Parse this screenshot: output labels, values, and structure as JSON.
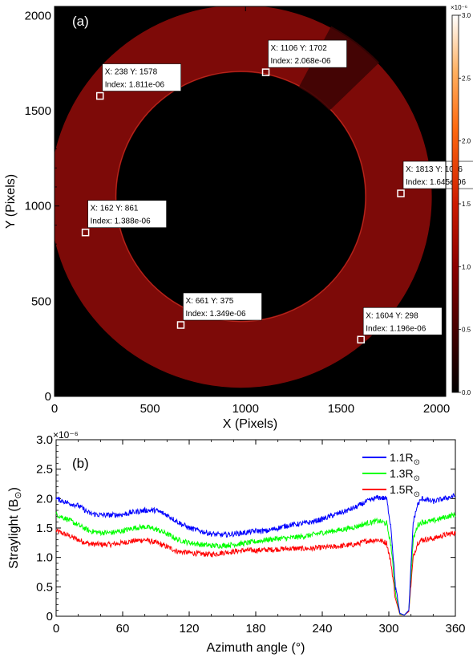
{
  "chart_data": [
    {
      "type": "heatmap",
      "panel_label": "(a)",
      "xlabel": "X (Pixels)",
      "ylabel": "Y (Pixels)",
      "xlim": [
        0,
        2048
      ],
      "ylim": [
        0,
        2048
      ],
      "xticks": [
        0,
        500,
        1000,
        1500,
        2000
      ],
      "yticks": [
        0,
        500,
        1000,
        1500,
        2000
      ],
      "colorbar": {
        "exponent_label": "×10⁻⁶",
        "range": [
          0.0,
          3.0
        ],
        "ticks": [
          "0.0",
          "0.5",
          "1.0",
          "1.5",
          "2.0",
          "2.5",
          "3.0"
        ]
      },
      "ring": {
        "center": [
          975,
          1050
        ],
        "inner_radius": 650,
        "outer_radius": 1000
      },
      "annotations": [
        {
          "x": 238,
          "y": 1578,
          "label_xy": "X: 238   Y: 1578",
          "label_index": "Index: 1.811e-06"
        },
        {
          "x": 1106,
          "y": 1702,
          "label_xy": "X: 1106   Y: 1702",
          "label_index": "Index: 2.068e-06"
        },
        {
          "x": 1813,
          "y": 1066,
          "label_xy": "X: 1813   Y: 1066",
          "label_index": "Index: 1.645e-06"
        },
        {
          "x": 162,
          "y": 861,
          "label_xy": "X: 162   Y: 861",
          "label_index": "Index: 1.388e-06"
        },
        {
          "x": 661,
          "y": 375,
          "label_xy": "X: 661   Y: 375",
          "label_index": "Index: 1.349e-06"
        },
        {
          "x": 1604,
          "y": 298,
          "label_xy": "X: 1604   Y: 298",
          "label_index": "Index: 1.196e-06"
        }
      ]
    },
    {
      "type": "line",
      "panel_label": "(b)",
      "xlabel": "Azimuth angle (°)",
      "ylabel": "Straylight (B",
      "ylabel_sub": "⊙",
      "ylabel_end": ")",
      "y_exponent_label": "×10⁻⁶",
      "xlim": [
        0,
        360
      ],
      "ylim": [
        0,
        3.0
      ],
      "xticks": [
        0,
        60,
        120,
        180,
        240,
        300,
        360
      ],
      "yticks": [
        "0",
        "0.5",
        "1.0",
        "1.5",
        "2.0",
        "2.5",
        "3.0"
      ],
      "legend_position": "top-right",
      "x": [
        0,
        10,
        20,
        30,
        40,
        50,
        60,
        70,
        80,
        90,
        100,
        110,
        120,
        130,
        140,
        150,
        160,
        170,
        180,
        190,
        200,
        210,
        220,
        230,
        240,
        250,
        260,
        270,
        280,
        290,
        298,
        302,
        306,
        310,
        314,
        318,
        322,
        326,
        330,
        340,
        350,
        360
      ],
      "series": [
        {
          "name": "1.1R",
          "name_sub": "⊙",
          "color": "#0000ff",
          "values": [
            2.0,
            1.93,
            1.88,
            1.75,
            1.72,
            1.72,
            1.73,
            1.77,
            1.8,
            1.8,
            1.72,
            1.6,
            1.5,
            1.45,
            1.4,
            1.38,
            1.4,
            1.42,
            1.45,
            1.45,
            1.5,
            1.55,
            1.57,
            1.6,
            1.65,
            1.72,
            1.78,
            1.85,
            1.95,
            2.02,
            2.0,
            1.5,
            0.5,
            0.05,
            0.02,
            0.1,
            1.6,
            1.9,
            2.0,
            1.95,
            2.0,
            2.05
          ]
        },
        {
          "name": "1.3R",
          "name_sub": "⊙",
          "color": "#00ff00",
          "values": [
            1.73,
            1.65,
            1.55,
            1.45,
            1.42,
            1.42,
            1.45,
            1.5,
            1.52,
            1.48,
            1.4,
            1.3,
            1.25,
            1.22,
            1.2,
            1.2,
            1.22,
            1.24,
            1.27,
            1.3,
            1.32,
            1.33,
            1.35,
            1.38,
            1.42,
            1.45,
            1.48,
            1.52,
            1.58,
            1.62,
            1.58,
            1.2,
            0.4,
            0.04,
            0.02,
            0.1,
            1.3,
            1.55,
            1.6,
            1.62,
            1.68,
            1.73
          ]
        },
        {
          "name": "1.5R",
          "name_sub": "⊙",
          "color": "#ff0000",
          "values": [
            1.45,
            1.38,
            1.3,
            1.23,
            1.22,
            1.22,
            1.25,
            1.28,
            1.3,
            1.25,
            1.18,
            1.1,
            1.08,
            1.06,
            1.05,
            1.08,
            1.1,
            1.12,
            1.12,
            1.13,
            1.14,
            1.15,
            1.15,
            1.15,
            1.17,
            1.18,
            1.2,
            1.22,
            1.28,
            1.3,
            1.25,
            0.9,
            0.3,
            0.03,
            0.02,
            0.08,
            1.0,
            1.25,
            1.3,
            1.32,
            1.38,
            1.42
          ]
        }
      ]
    }
  ]
}
